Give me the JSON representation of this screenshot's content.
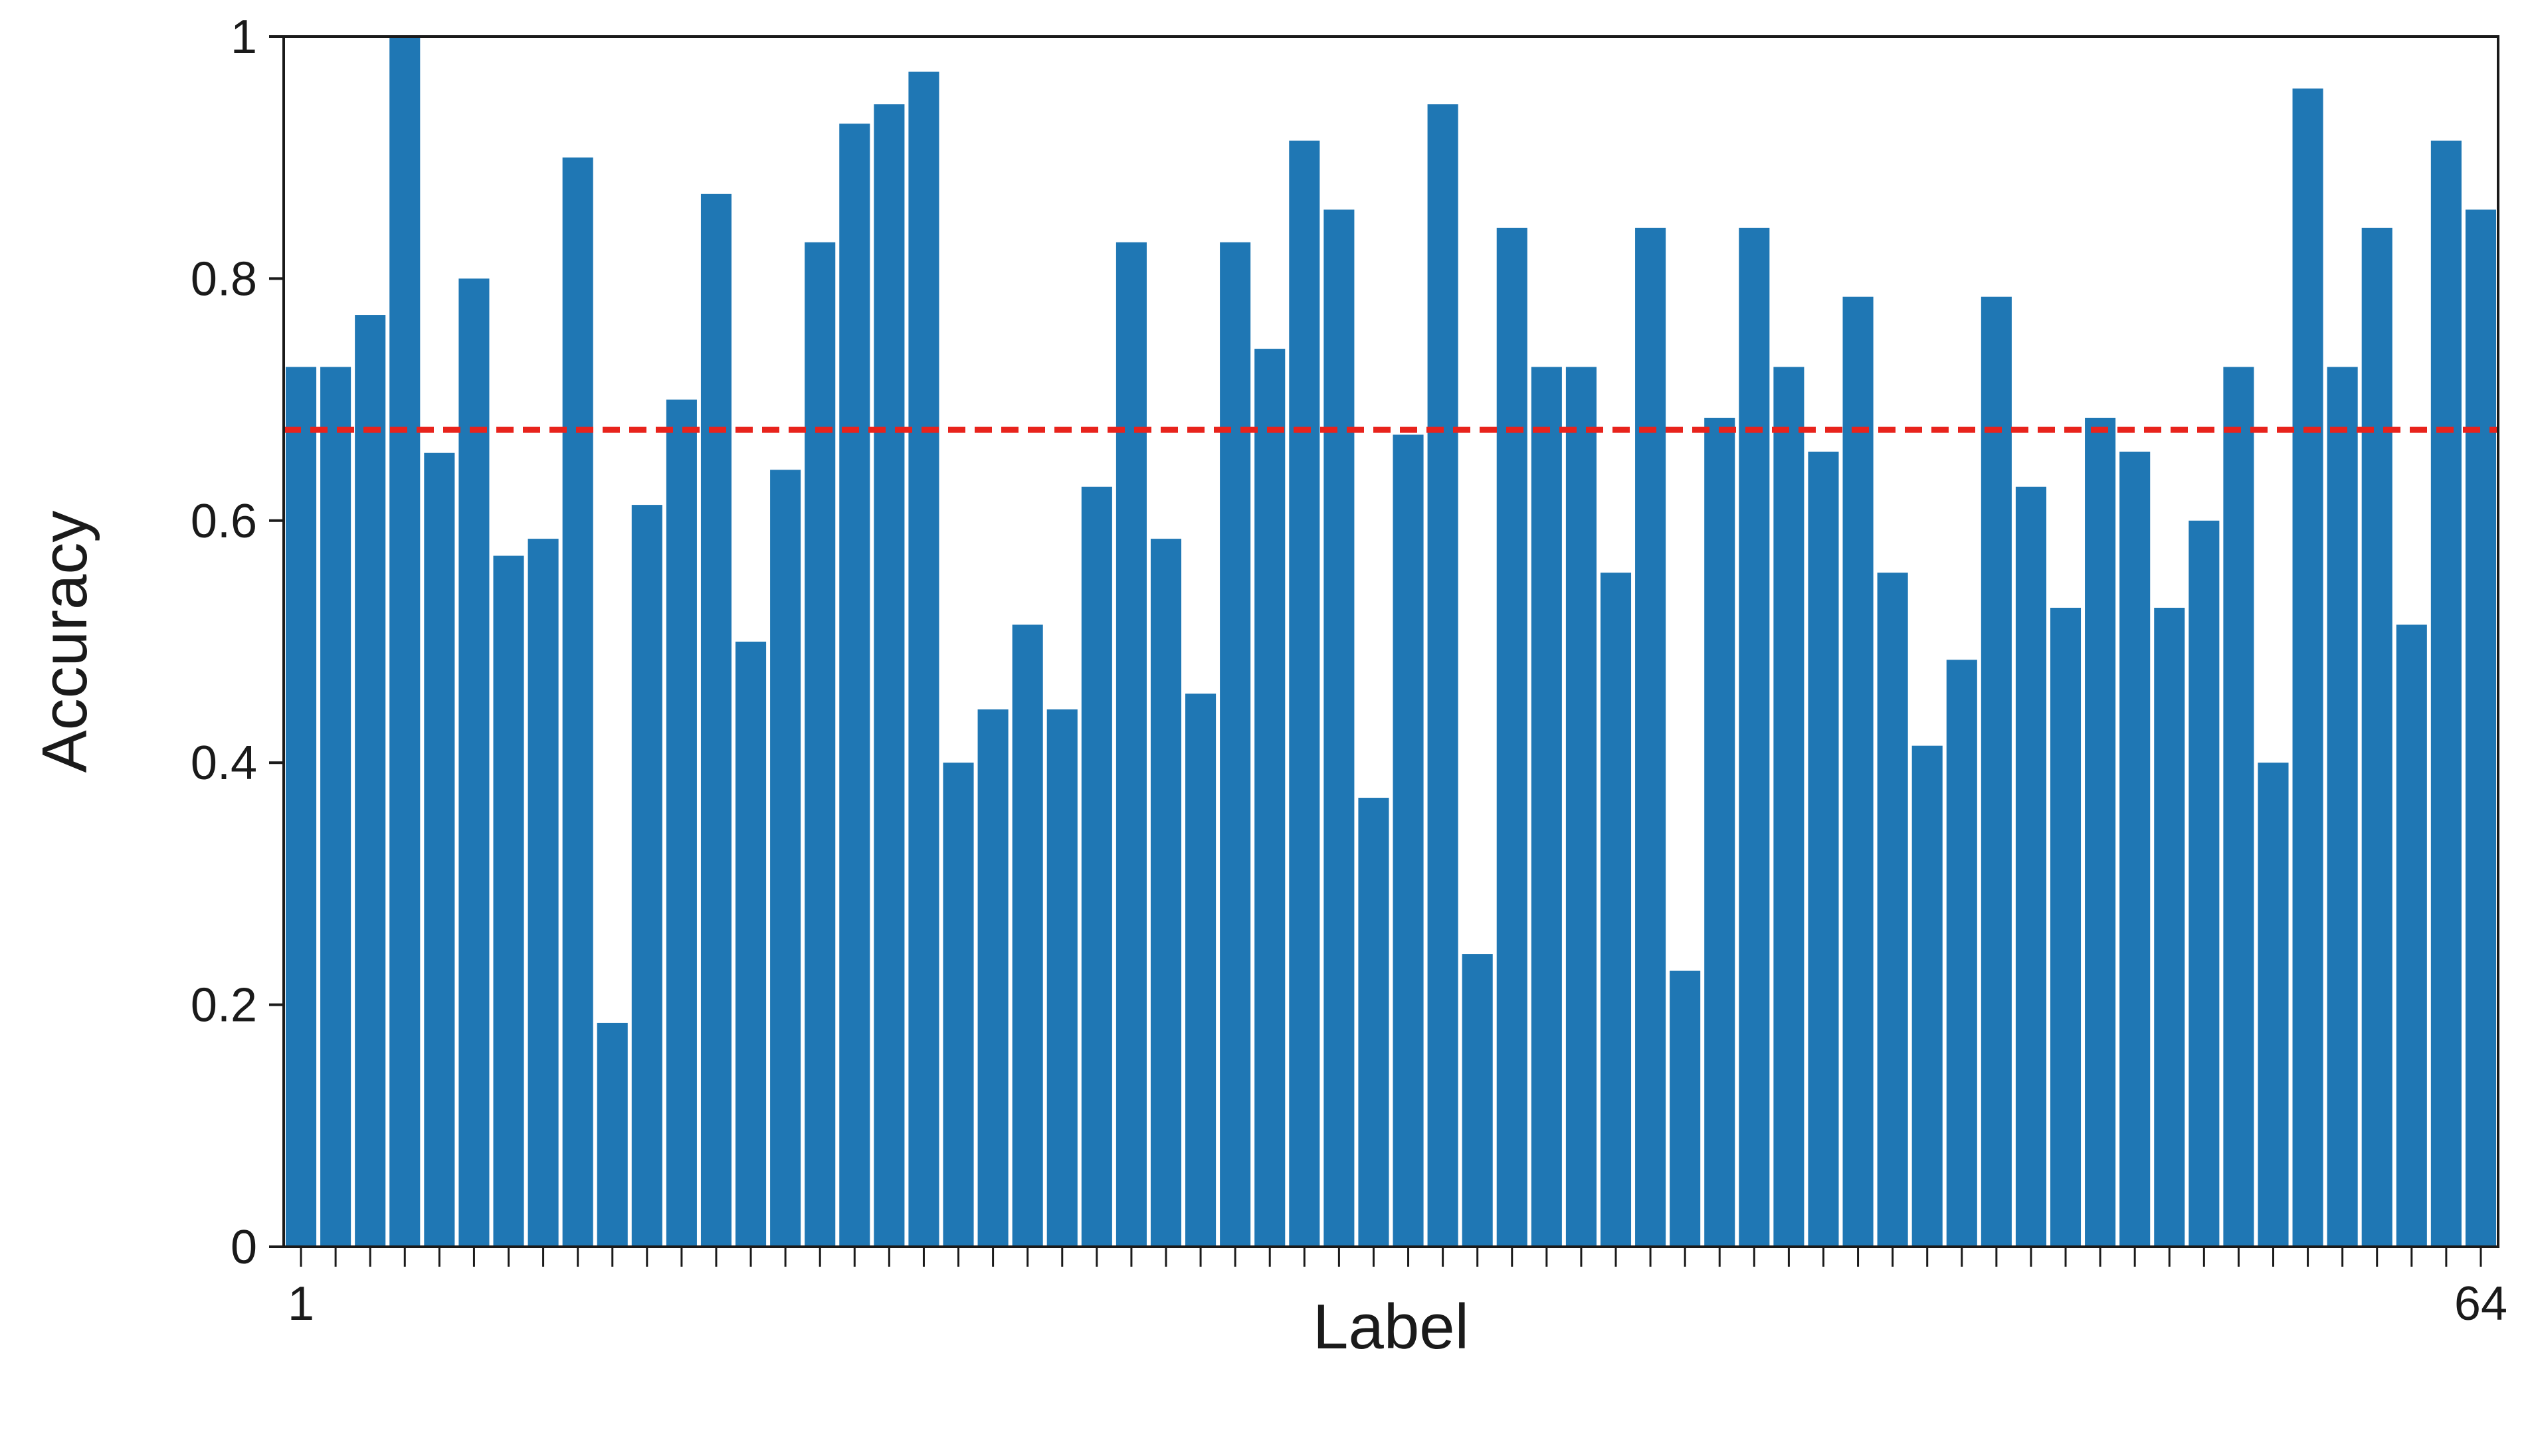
{
  "chart_data": {
    "type": "bar",
    "xlabel": "Label",
    "ylabel": "Accuracy",
    "ylim": [
      0,
      1
    ],
    "xlim": [
      1,
      64
    ],
    "yticks": [
      {
        "value": 0,
        "label": "0"
      },
      {
        "value": 0.2,
        "label": "0.2"
      },
      {
        "value": 0.4,
        "label": "0.4"
      },
      {
        "value": 0.6,
        "label": "0.6"
      },
      {
        "value": 0.8,
        "label": "0.8"
      },
      {
        "value": 1,
        "label": "1"
      }
    ],
    "xtick_labels": [
      {
        "value": 1,
        "label": "1"
      },
      {
        "value": 64,
        "label": "64"
      }
    ],
    "categories": [
      1,
      2,
      3,
      4,
      5,
      6,
      7,
      8,
      9,
      10,
      11,
      12,
      13,
      14,
      15,
      16,
      17,
      18,
      19,
      20,
      21,
      22,
      23,
      24,
      25,
      26,
      27,
      28,
      29,
      30,
      31,
      32,
      33,
      34,
      35,
      36,
      37,
      38,
      39,
      40,
      41,
      42,
      43,
      44,
      45,
      46,
      47,
      48,
      49,
      50,
      51,
      52,
      53,
      54,
      55,
      56,
      57,
      58,
      59,
      60,
      61,
      62,
      63,
      64
    ],
    "values": [
      0.727,
      0.727,
      0.77,
      1.0,
      0.656,
      0.8,
      0.571,
      0.585,
      0.9,
      0.185,
      0.613,
      0.7,
      0.87,
      0.5,
      0.642,
      0.83,
      0.928,
      0.944,
      0.971,
      0.4,
      0.444,
      0.514,
      0.444,
      0.628,
      0.83,
      0.585,
      0.457,
      0.83,
      0.742,
      0.914,
      0.857,
      0.371,
      0.671,
      0.944,
      0.242,
      0.842,
      0.727,
      0.727,
      0.557,
      0.842,
      0.228,
      0.685,
      0.842,
      0.727,
      0.657,
      0.785,
      0.557,
      0.414,
      0.485,
      0.785,
      0.628,
      0.528,
      0.685,
      0.657,
      0.528,
      0.6,
      0.727,
      0.4,
      0.957,
      0.727,
      0.842,
      0.514,
      0.914,
      0.857
    ],
    "reference_line": {
      "value": 0.675,
      "style": "dashed",
      "color": "#e8231c"
    },
    "colors": {
      "bar": "#1f77b4",
      "bar_edge": "#ffffff",
      "axis": "#1a1a1a"
    },
    "grid": false,
    "legend": "none"
  }
}
